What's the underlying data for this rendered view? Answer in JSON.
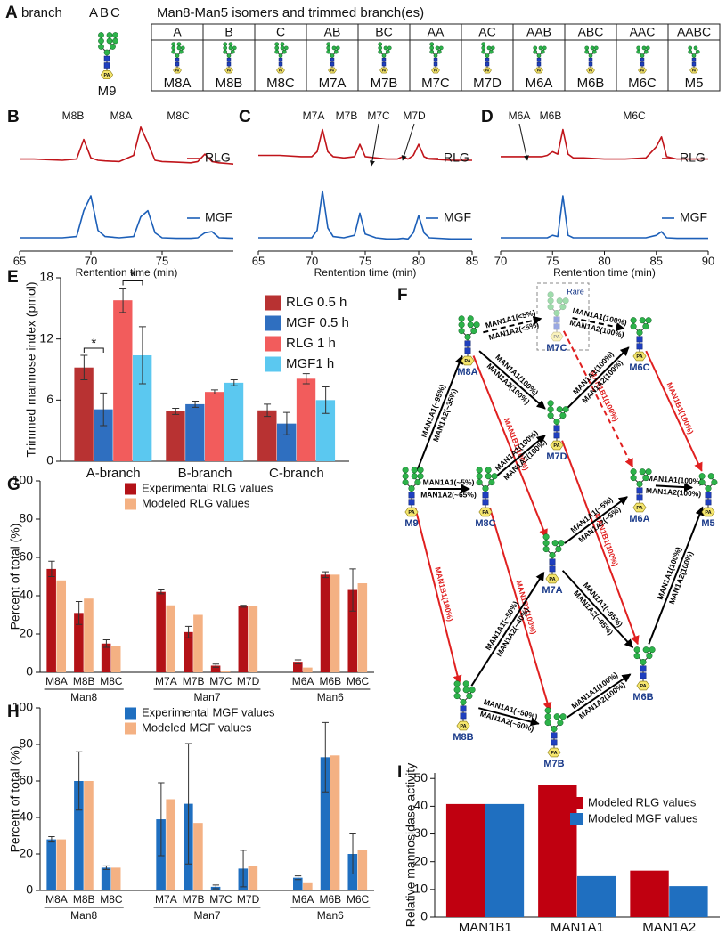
{
  "panel_a": {
    "label": "A",
    "branch_label": "branch",
    "branch_letters": "ABC",
    "m9_label": "M9",
    "pa_label": "PA",
    "title": "Man8-Man5 isomers and trimmed branch(es)",
    "branches": [
      "A",
      "B",
      "C",
      "AB",
      "BC",
      "AA",
      "AC",
      "AAB",
      "ABC",
      "AAC",
      "AABC"
    ],
    "isomers": [
      "M8A",
      "M8B",
      "M8C",
      "M7A",
      "M7B",
      "M7C",
      "M7D",
      "M6A",
      "M6B",
      "M6C",
      "M5"
    ]
  },
  "panel_f": {
    "label": "F",
    "rare_label": "Rare",
    "nodes": [
      "M9",
      "M8A",
      "M8C",
      "M8B",
      "M7C",
      "M7D",
      "M7A",
      "M7B",
      "M6C",
      "M6A",
      "M6B",
      "M5"
    ],
    "edges": [
      {
        "from": 0,
        "to": 1,
        "labels": [
          "MAN1A1(~95%)",
          "MAN1A2(~35%)"
        ],
        "color": "#000000"
      },
      {
        "from": 0,
        "to": 2,
        "labels": [
          "MAN1A1(~5%)",
          "MAN1A2(~65%)"
        ],
        "color": "#000000"
      },
      {
        "from": 0,
        "to": 3,
        "labels": [
          "MAN1B1(100%)"
        ],
        "color": "#e02020"
      },
      {
        "from": 1,
        "to": 4,
        "labels": [
          "MAN1A1(<5%)",
          "MAN1A2(<5%)"
        ],
        "color": "#000000",
        "dashed": true
      },
      {
        "from": 1,
        "to": 5,
        "labels": [
          "MAN1A1(100%)",
          "MAN1A2(100%)"
        ],
        "color": "#000000"
      },
      {
        "from": 1,
        "to": 6,
        "labels": [
          "MAN1B1(100%)"
        ],
        "color": "#e02020"
      },
      {
        "from": 2,
        "to": 5,
        "labels": [
          "MAN1A1(100%)",
          "MAN1A2(100%)"
        ],
        "color": "#000000"
      },
      {
        "from": 2,
        "to": 7,
        "labels": [
          "MAN1B1(100%)"
        ],
        "color": "#e02020"
      },
      {
        "from": 3,
        "to": 6,
        "labels": [
          "MAN1A1(~50%)",
          "MAN1A2(~40%)"
        ],
        "color": "#000000"
      },
      {
        "from": 3,
        "to": 7,
        "labels": [
          "MAN1A1(~50%)",
          "MAN1A2(~60%)"
        ],
        "color": "#000000"
      },
      {
        "from": 4,
        "to": 8,
        "labels": [
          "MAN1A1(100%)",
          "MAN1A2(100%)"
        ],
        "color": "#000000",
        "dashed": true
      },
      {
        "from": 4,
        "to": 9,
        "labels": [
          "MAN1B1(100%)"
        ],
        "color": "#e02020",
        "dashed": true
      },
      {
        "from": 5,
        "to": 8,
        "labels": [
          "MAN1A1(100%)",
          "MAN1A2(100%)"
        ],
        "color": "#000000"
      },
      {
        "from": 5,
        "to": 10,
        "labels": [
          "MAN1B1(100%)"
        ],
        "color": "#e02020"
      },
      {
        "from": 6,
        "to": 9,
        "labels": [
          "MAN1A1(~5%)",
          "MAN1A2(~5%)"
        ],
        "color": "#000000"
      },
      {
        "from": 6,
        "to": 10,
        "labels": [
          "MAN1A1(~95%)",
          "MAN1A2(~95%)"
        ],
        "color": "#000000"
      },
      {
        "from": 7,
        "to": 10,
        "labels": [
          "MAN1A1(100%)",
          "MAN1A2(100%)"
        ],
        "color": "#000000"
      },
      {
        "from": 8,
        "to": 11,
        "labels": [
          "MAN1B1(100%)"
        ],
        "color": "#e02020"
      },
      {
        "from": 9,
        "to": 11,
        "labels": [
          "MAN1A1(100%)",
          "MAN1A2(100%)"
        ],
        "color": "#000000"
      },
      {
        "from": 10,
        "to": 11,
        "labels": [
          "MAN1A1(100%)",
          "MAN1A2(100%)"
        ],
        "color": "#000000"
      }
    ]
  },
  "chart_data": [
    {
      "panel": "B",
      "type": "line",
      "xlabel": "Rentention time (min)",
      "xlim": [
        65,
        80
      ],
      "xticks": [
        65,
        70,
        75
      ],
      "ylim": [
        0,
        100
      ],
      "peak_labels": [
        "M8B",
        "M8A",
        "M8C"
      ],
      "x": [
        65,
        66,
        67,
        68,
        69,
        69.5,
        70,
        70.5,
        71,
        72,
        73,
        73.5,
        74,
        74.5,
        75,
        76,
        77,
        77.5,
        78,
        78.5,
        79,
        80
      ],
      "series": [
        {
          "name": "RLG",
          "color": "#c0141a",
          "values": [
            72,
            72,
            71.5,
            71,
            72,
            88,
            73,
            71,
            70.5,
            70,
            75,
            98,
            85,
            71,
            70,
            69.5,
            69,
            70,
            76,
            70,
            69,
            68
          ]
        },
        {
          "name": "MGF",
          "color": "#1c5fb8",
          "values": [
            8,
            8,
            8,
            8,
            9,
            30,
            42,
            14,
            9,
            8,
            9,
            25,
            30,
            12,
            8,
            7.5,
            7.5,
            8,
            12,
            13,
            8,
            7.5
          ]
        }
      ]
    },
    {
      "panel": "C",
      "type": "line",
      "xlabel": "Rentention time (min)",
      "xlim": [
        65,
        85
      ],
      "xticks": [
        65,
        70,
        75,
        80,
        85
      ],
      "ylim": [
        0,
        100
      ],
      "peak_labels": [
        "M7A",
        "M7B",
        "M7C",
        "M7D"
      ],
      "x": [
        65,
        67,
        69,
        70,
        70.5,
        71,
        71.5,
        72,
        73,
        74,
        74.5,
        75,
        76,
        77,
        78,
        78.5,
        79,
        79.5,
        80,
        80.5,
        81,
        83,
        85
      ],
      "series": [
        {
          "name": "RLG",
          "color": "#c0141a",
          "values": [
            75,
            75,
            74,
            74,
            78,
            96,
            78,
            74,
            73,
            74,
            84,
            74,
            73,
            72,
            72,
            74,
            72,
            75,
            84,
            74,
            72,
            71,
            71
          ]
        },
        {
          "name": "MGF",
          "color": "#1c5fb8",
          "values": [
            8,
            8,
            8,
            8,
            14,
            46,
            16,
            9,
            8,
            10,
            28,
            11,
            8,
            7,
            7,
            7.5,
            7,
            12,
            26,
            12,
            8,
            7,
            7
          ]
        }
      ]
    },
    {
      "panel": "D",
      "type": "line",
      "xlabel": "Rentention time (min)",
      "xlim": [
        70,
        90
      ],
      "xticks": [
        70,
        75,
        80,
        85,
        90
      ],
      "ylim": [
        0,
        100
      ],
      "peak_labels": [
        "M6A",
        "M6B",
        "M6C"
      ],
      "x": [
        70,
        72,
        74,
        74.5,
        75,
        75.5,
        76,
        76.5,
        77,
        78,
        80,
        82,
        84,
        85,
        85.5,
        86,
        87,
        90
      ],
      "series": [
        {
          "name": "RLG",
          "color": "#c0141a",
          "values": [
            74,
            74,
            74,
            75,
            78,
            76,
            96,
            76,
            73,
            73,
            72,
            72,
            73,
            82,
            90,
            74,
            72,
            72
          ]
        },
        {
          "name": "MGF",
          "color": "#1c5fb8",
          "values": [
            8,
            8,
            8,
            8,
            10,
            9,
            42,
            10,
            8,
            8,
            8,
            8,
            8,
            10,
            13,
            8,
            7.5,
            7.5
          ]
        }
      ]
    },
    {
      "panel": "E",
      "type": "bar",
      "ylabel": "Trimmed mannose index (pmol)",
      "ylim": [
        0,
        18
      ],
      "yticks": [
        0,
        6,
        12,
        18
      ],
      "categories": [
        "A-branch",
        "B-branch",
        "C-branch"
      ],
      "annotations": [
        "*",
        "*"
      ],
      "series": [
        {
          "name": "RLG 0.5 h",
          "color": "#b83232",
          "values": [
            9.2,
            4.9,
            5.0
          ],
          "errors": [
            1.2,
            0.3,
            0.6
          ]
        },
        {
          "name": "MGF 0.5 h",
          "color": "#2f6fc0",
          "values": [
            5.1,
            5.6,
            3.7
          ],
          "errors": [
            1.6,
            0.3,
            1.1
          ]
        },
        {
          "name": "RLG 1 h",
          "color": "#f25c5c",
          "values": [
            15.8,
            6.8,
            8.1
          ],
          "errors": [
            1.2,
            0.2,
            0.5
          ]
        },
        {
          "name": "MGF1 h",
          "color": "#5bc8f0",
          "values": [
            10.4,
            7.7,
            6.0
          ],
          "errors": [
            2.8,
            0.3,
            1.3
          ]
        }
      ]
    },
    {
      "panel": "G",
      "type": "bar",
      "ylabel": "Percent of total (%)",
      "ylim": [
        0,
        100
      ],
      "yticks": [
        0,
        20,
        40,
        60,
        80,
        100
      ],
      "groups": [
        {
          "label": "Man8",
          "categories": [
            "M8A",
            "M8B",
            "M8C"
          ]
        },
        {
          "label": "Man7",
          "categories": [
            "M7A",
            "M7B",
            "M7C",
            "M7D"
          ]
        },
        {
          "label": "Man6",
          "categories": [
            "M6A",
            "M6B",
            "M6C"
          ]
        }
      ],
      "series": [
        {
          "name": "Experimental RLG values",
          "color": "#b31217",
          "values": [
            54,
            31,
            15,
            42,
            21,
            3.5,
            34.5,
            5.5,
            51,
            43
          ],
          "errors": [
            4,
            6,
            2,
            1,
            3,
            0.8,
            0.5,
            1,
            1.5,
            11
          ]
        },
        {
          "name": "Modeled RLG values",
          "color": "#f4b183",
          "values": [
            48,
            38.5,
            13.5,
            35,
            30,
            0.5,
            34.5,
            2.5,
            51,
            46.5
          ]
        }
      ]
    },
    {
      "panel": "H",
      "type": "bar",
      "ylabel": "Percent of total (%)",
      "ylim": [
        0,
        100
      ],
      "yticks": [
        0,
        20,
        40,
        60,
        80,
        100
      ],
      "groups": [
        {
          "label": "Man8",
          "categories": [
            "M8A",
            "M8B",
            "M8C"
          ]
        },
        {
          "label": "Man7",
          "categories": [
            "M7A",
            "M7B",
            "M7C",
            "M7D"
          ]
        },
        {
          "label": "Man6",
          "categories": [
            "M6A",
            "M6B",
            "M6C"
          ]
        }
      ],
      "series": [
        {
          "name": "Experimental MGF values",
          "color": "#1f6fc0",
          "values": [
            28,
            60,
            12.5,
            39,
            47.5,
            2,
            12,
            7,
            73,
            20
          ],
          "errors": [
            1.5,
            16,
            1,
            20,
            33,
            1,
            10,
            1,
            19,
            11
          ]
        },
        {
          "name": "Modeled MGF values",
          "color": "#f4b183",
          "values": [
            28,
            60,
            12.5,
            50,
            37,
            0.3,
            13.5,
            4,
            74,
            22
          ]
        }
      ]
    },
    {
      "panel": "I",
      "type": "bar",
      "ylabel": "Relative mannosidase activity",
      "ylim": [
        0,
        52
      ],
      "yticks": [
        0,
        10,
        20,
        30,
        40,
        50
      ],
      "categories": [
        "MAN1B1",
        "MAN1A1",
        "MAN1A2"
      ],
      "series": [
        {
          "name": "Modeled RLG values",
          "color": "#c00010",
          "values": [
            40.8,
            47.7,
            16.8
          ]
        },
        {
          "name": "Modeled MGF values",
          "color": "#1f6fc0",
          "values": [
            40.8,
            14.8,
            11.2
          ]
        }
      ]
    }
  ]
}
